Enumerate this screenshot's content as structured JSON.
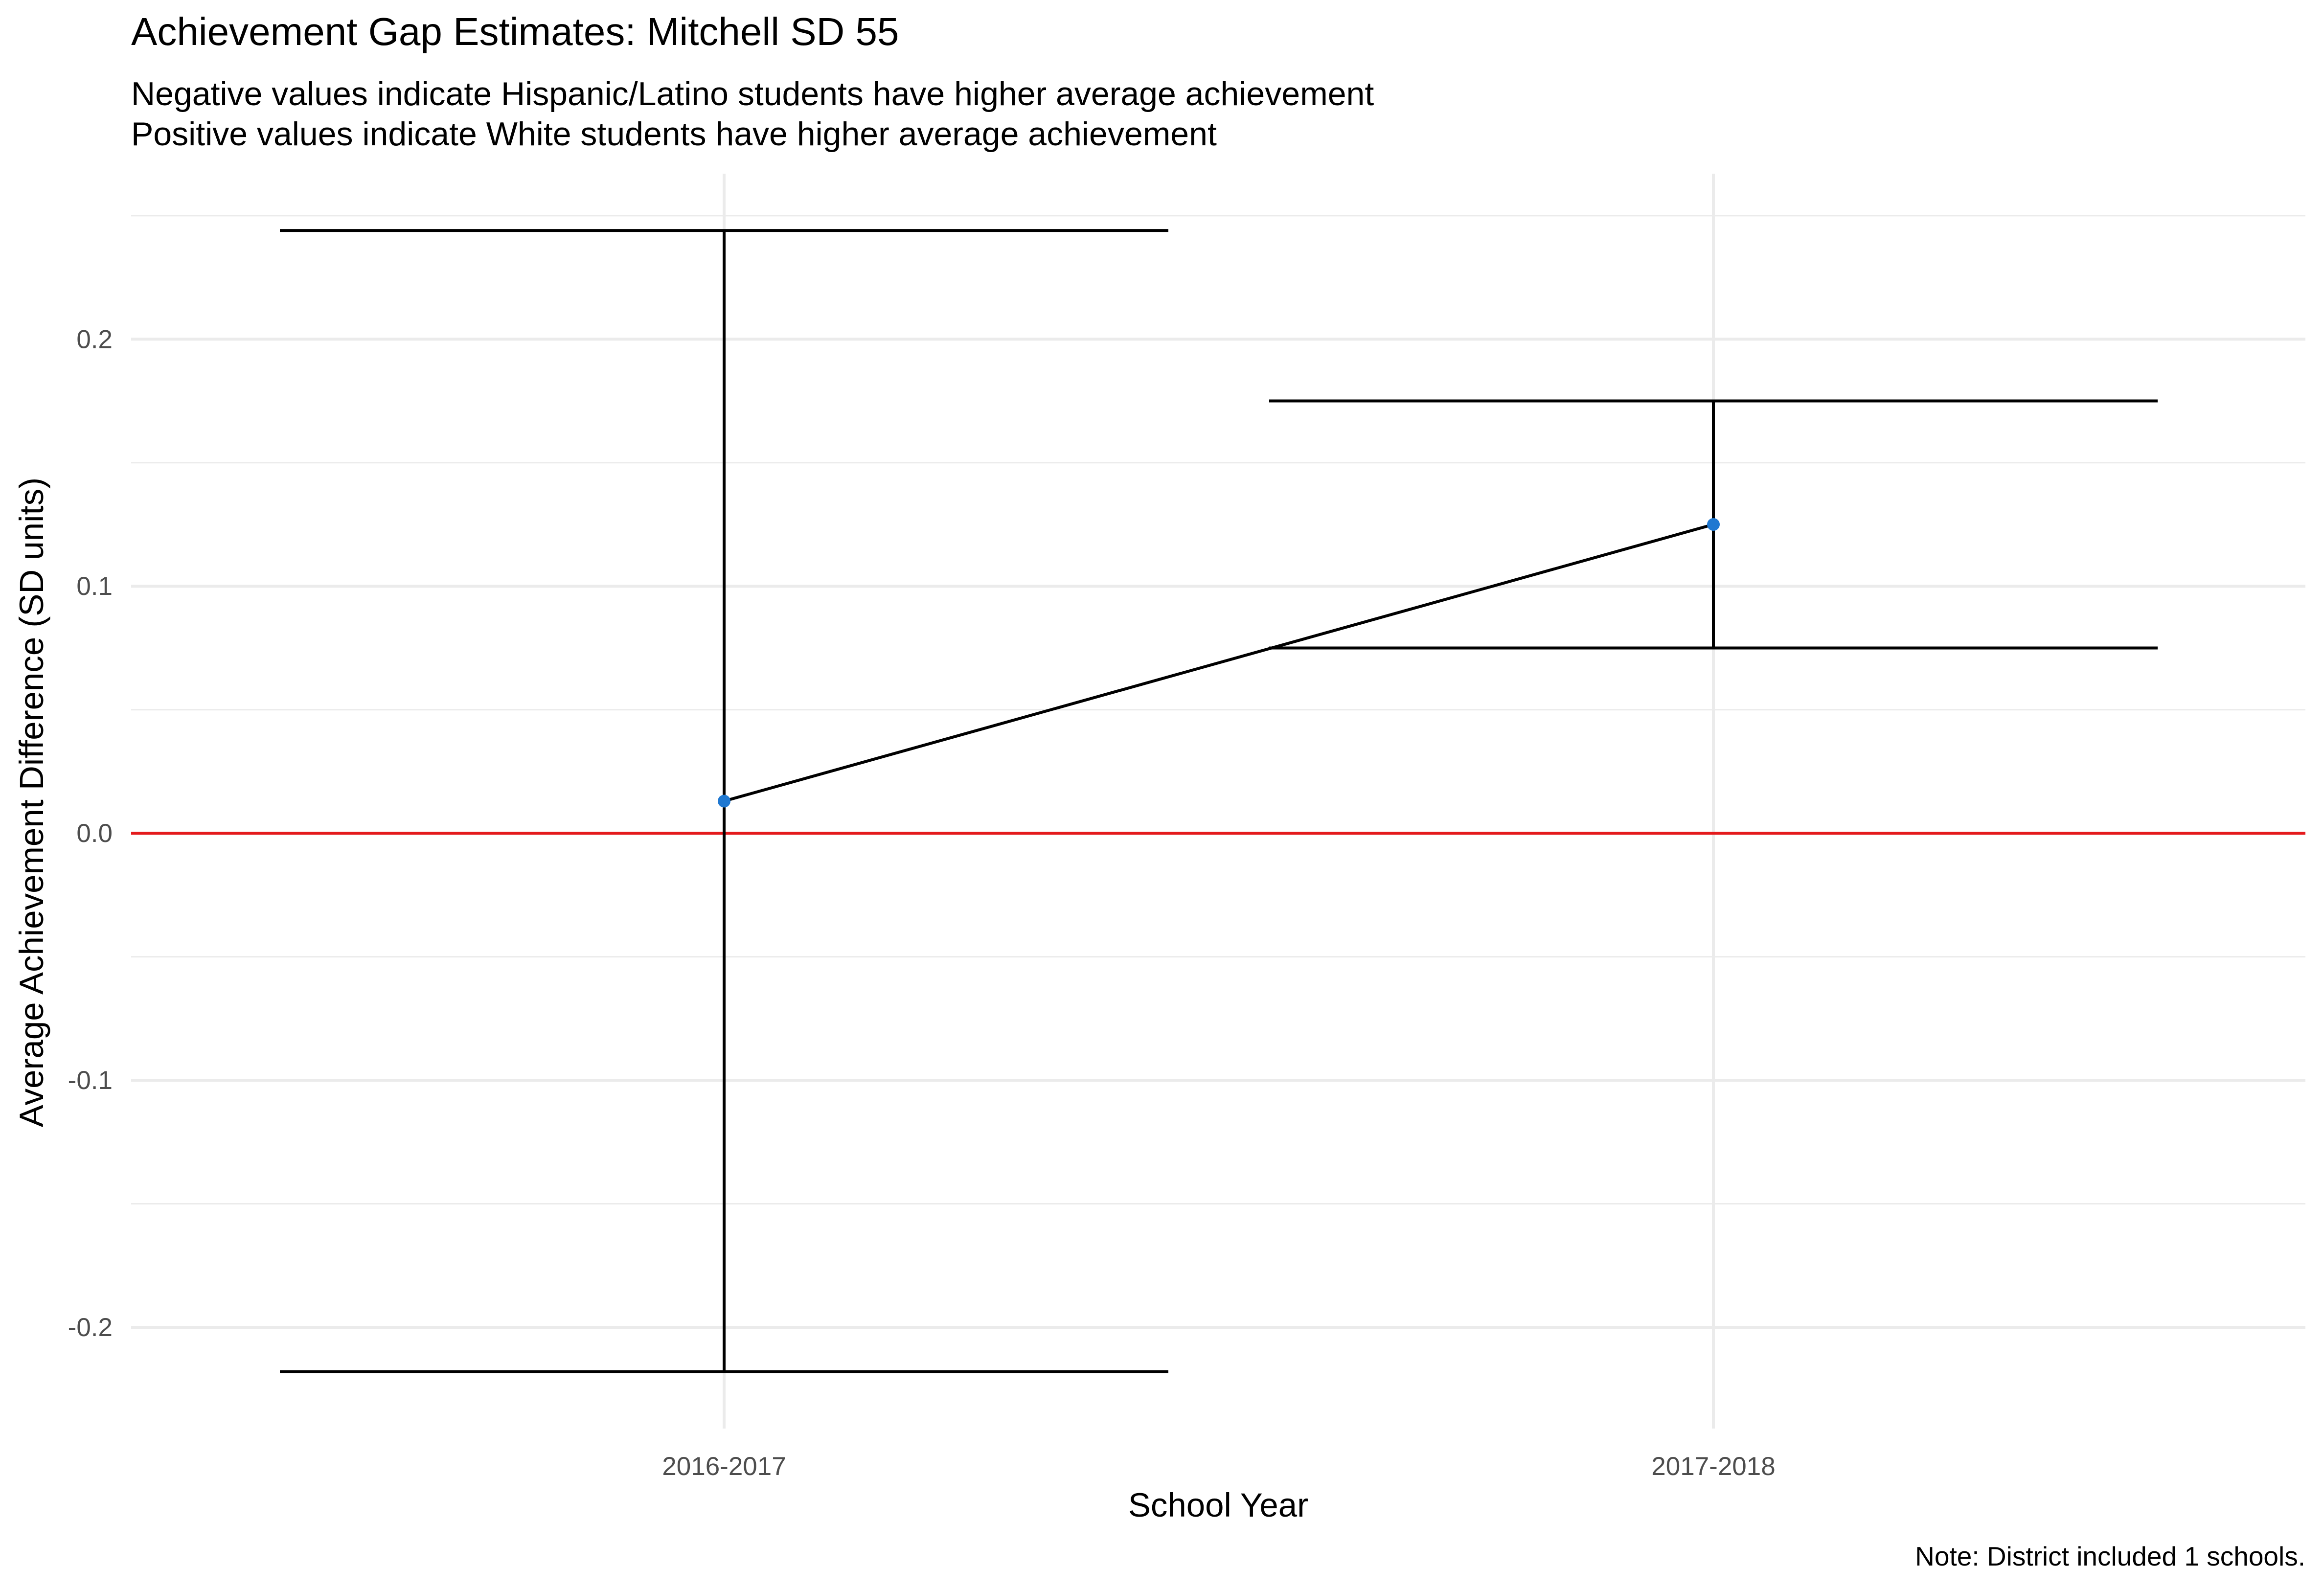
{
  "chart_data": {
    "type": "line",
    "title": "Achievement Gap Estimates: Mitchell SD 55",
    "subtitle_lines": [
      "Negative values indicate Hispanic/Latino students have higher average achievement",
      "Positive values indicate White students have higher average achievement"
    ],
    "xlabel": "School Year",
    "ylabel": "Average Achievement Difference (SD units)",
    "caption": "Note: District included 1 schools.",
    "categories": [
      "2016-2017",
      "2017-2018"
    ],
    "series": [
      {
        "values": [
          0.013,
          0.125
        ],
        "ci_lower": [
          -0.218,
          0.075
        ],
        "ci_upper": [
          0.244,
          0.175
        ]
      }
    ],
    "reference_line": {
      "y": 0,
      "color": "#e41a1c"
    },
    "yticks": [
      -0.2,
      -0.1,
      0.0,
      0.1,
      0.2
    ],
    "ytick_labels": [
      "-0.2",
      "-0.1",
      "0.0",
      "0.1",
      "0.2"
    ],
    "ylim": [
      -0.241,
      0.267
    ],
    "grid": true,
    "colors": {
      "point": "#1f78d1",
      "line": "#000000",
      "reference": "#e41a1c",
      "grid": "#ebebeb"
    }
  }
}
